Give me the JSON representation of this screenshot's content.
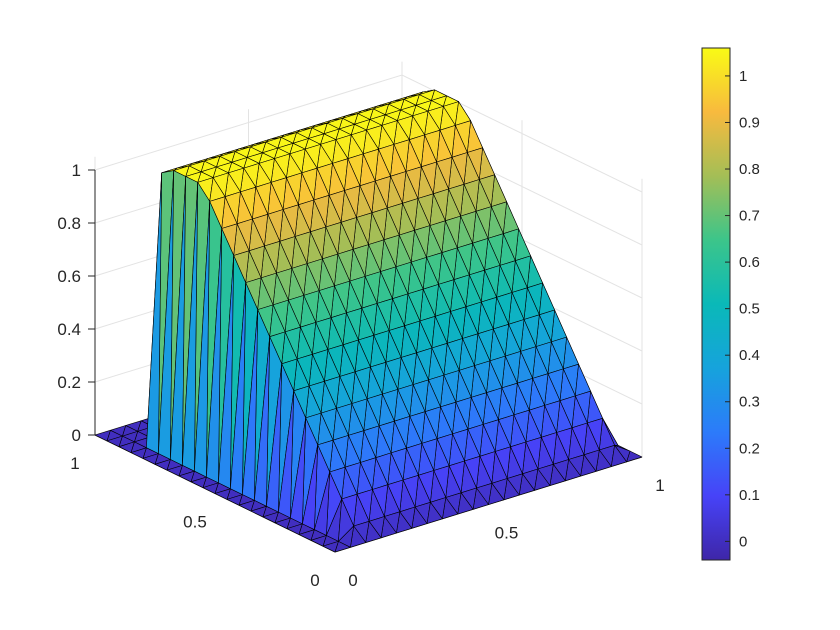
{
  "chart_data": {
    "type": "surface",
    "title": "",
    "xlabel": "",
    "ylabel": "",
    "zlabel": "",
    "colormap": "parula",
    "grid": true,
    "edge_color": "#000000",
    "x": [
      0,
      0.05,
      0.1,
      0.15,
      0.2,
      0.25,
      0.3,
      0.35,
      0.4,
      0.45,
      0.5,
      0.55,
      0.6,
      0.65,
      0.7,
      0.75,
      0.8,
      0.85,
      0.9,
      0.95,
      1
    ],
    "y": [
      0,
      0.05,
      0.1,
      0.15,
      0.2,
      0.25,
      0.3,
      0.35,
      0.4,
      0.45,
      0.5,
      0.55,
      0.6,
      0.65,
      0.7,
      0.75,
      0.8,
      0.85,
      0.9,
      0.95,
      1
    ],
    "z_profile_along_y": [
      0,
      0.04,
      0.12,
      0.2,
      0.28,
      0.36,
      0.44,
      0.52,
      0.6,
      0.68,
      0.76,
      0.84,
      0.92,
      1.0,
      1.05,
      1.05,
      1.05,
      1.02,
      0,
      0,
      0
    ],
    "z_support_along_x": [
      0,
      0,
      1,
      1,
      1,
      1,
      1,
      1,
      1,
      1,
      1,
      1,
      1,
      1,
      1,
      1,
      1,
      1,
      1,
      1,
      0
    ],
    "xlim": [
      0,
      1
    ],
    "ylim": [
      0,
      1
    ],
    "zlim": [
      0,
      1
    ],
    "x_ticks": [
      "0",
      "0.5",
      "1"
    ],
    "y_ticks": [
      "0",
      "0.5",
      "1"
    ],
    "z_ticks": [
      "0",
      "0.2",
      "0.4",
      "0.6",
      "0.8",
      "1"
    ],
    "colorbar": {
      "limits": [
        -0.04,
        1.06
      ],
      "ticks": [
        "0",
        "0.1",
        "0.2",
        "0.3",
        "0.4",
        "0.5",
        "0.6",
        "0.7",
        "0.8",
        "0.9",
        "1"
      ]
    }
  }
}
